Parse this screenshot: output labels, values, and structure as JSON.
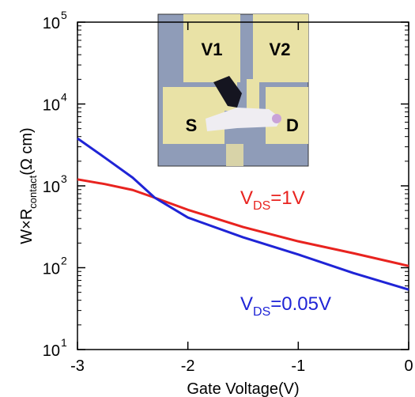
{
  "chart_data": {
    "type": "line",
    "x_label": "Gate Voltage(V)",
    "y_label": {
      "main": "W×R",
      "sub": "contact",
      "rest": "(Ω cm)"
    },
    "log_y": true,
    "xlim": [
      -3,
      0
    ],
    "xticks": [
      -3,
      -2,
      -1,
      0
    ],
    "ylim": [
      10,
      100000
    ],
    "yticks": [
      {
        "value": 10,
        "label": "10",
        "exponent": "1"
      },
      {
        "value": 100,
        "label": "10",
        "exponent": "2"
      },
      {
        "value": 1000,
        "label": "10",
        "exponent": "3"
      },
      {
        "value": 10000,
        "label": "10",
        "exponent": "4"
      },
      {
        "value": 100000,
        "label": "10",
        "exponent": "5"
      }
    ],
    "series": [
      {
        "label": {
          "main": "V",
          "sub": "DS",
          "rest": "=1V"
        },
        "color": "#e8231f",
        "x": [
          -3,
          -2.75,
          -2.5,
          -2.3,
          -2,
          -1.5,
          -1,
          -0.5,
          0
        ],
        "values": [
          1200,
          1050,
          890,
          716,
          510,
          314,
          210,
          150,
          105
        ]
      },
      {
        "label": {
          "main": "V",
          "sub": "DS",
          "rest": "=0.05V"
        },
        "color": "#1f24d6",
        "x": [
          -3,
          -2.75,
          -2.5,
          -2.3,
          -2,
          -1.5,
          -1,
          -0.5,
          0
        ],
        "values": [
          3800,
          2200,
          1260,
          716,
          410,
          235,
          145,
          86,
          54
        ]
      }
    ],
    "inset_labels": [
      "V1",
      "V2",
      "S",
      "D"
    ]
  }
}
